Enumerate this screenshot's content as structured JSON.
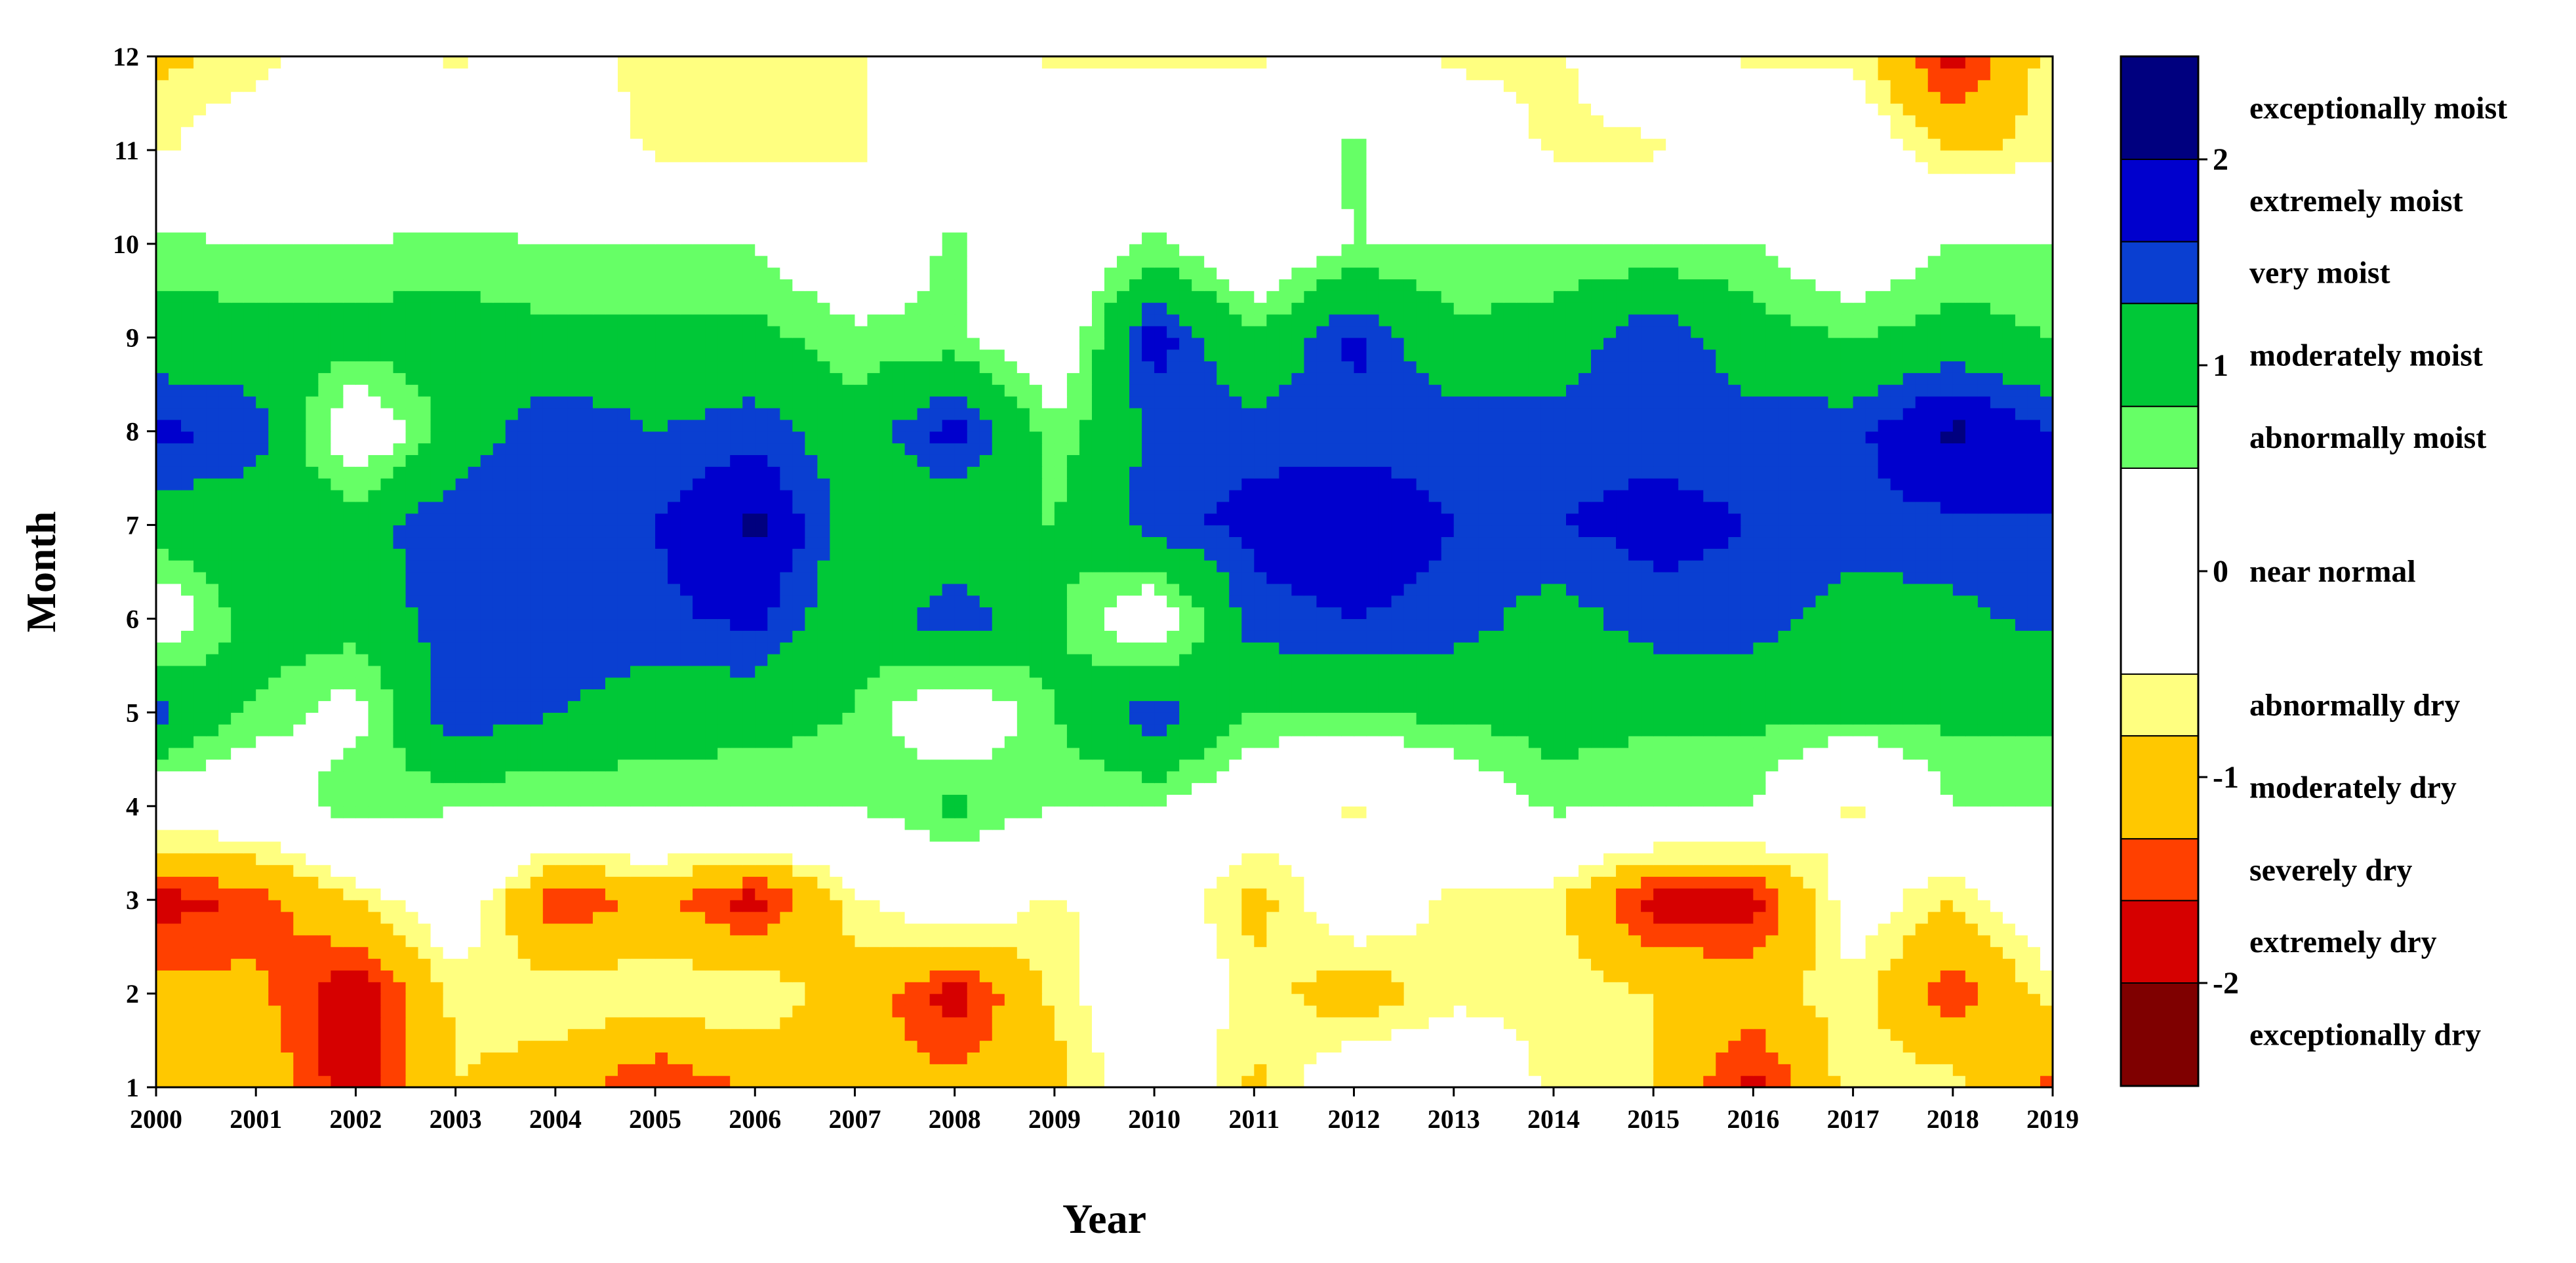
{
  "chart_data": {
    "type": "heatmap",
    "subtype": "filled-contour",
    "xlabel": "Year",
    "ylabel": "Month",
    "x": [
      2000,
      2001,
      2002,
      2003,
      2004,
      2005,
      2006,
      2007,
      2008,
      2009,
      2010,
      2011,
      2012,
      2013,
      2014,
      2015,
      2016,
      2017,
      2018,
      2019
    ],
    "y": [
      1,
      2,
      3,
      4,
      5,
      6,
      7,
      8,
      9,
      10,
      11,
      12
    ],
    "xlim": [
      2000,
      2019
    ],
    "ylim": [
      1,
      12
    ],
    "x_tick_labels": [
      "2000",
      "2001",
      "2002",
      "2003",
      "2004",
      "2005",
      "2006",
      "2007",
      "2008",
      "2009",
      "2010",
      "2011",
      "2012",
      "2013",
      "2014",
      "2015",
      "2016",
      "2017",
      "2018",
      "2019"
    ],
    "y_tick_labels": [
      "1",
      "2",
      "3",
      "4",
      "5",
      "6",
      "7",
      "8",
      "9",
      "10",
      "11",
      "12"
    ],
    "z_estimated": [
      [
        -0.9,
        -0.9,
        -1.9,
        -0.8,
        -1.0,
        -1.7,
        -1.2,
        -1.1,
        -1.2,
        -1.0,
        0.0,
        -0.9,
        0.0,
        0.0,
        -0.6,
        -0.8,
        -1.8,
        -0.6,
        -0.6,
        -1.5
      ],
      [
        -1.1,
        -1.2,
        -1.9,
        -0.7,
        -0.6,
        -0.5,
        -0.5,
        -1.0,
        -1.8,
        -0.7,
        0.0,
        -0.6,
        -1.1,
        -0.6,
        -0.6,
        -0.8,
        -1.0,
        -0.6,
        -1.6,
        -0.6
      ],
      [
        -1.8,
        -1.5,
        -0.8,
        0.0,
        -1.6,
        -1.2,
        -1.8,
        -0.6,
        0.0,
        -0.6,
        0.0,
        -1.0,
        0.0,
        -0.6,
        -0.7,
        -1.8,
        -1.8,
        -0.2,
        -0.8,
        0.0
      ],
      [
        0.0,
        0.0,
        0.8,
        0.5,
        0.5,
        0.5,
        0.5,
        0.5,
        0.9,
        0.5,
        0.5,
        0.0,
        -0.6,
        0.0,
        0.6,
        0.5,
        0.5,
        -0.6,
        0.5,
        0.5
      ],
      [
        1.5,
        0.7,
        0.3,
        1.6,
        1.3,
        1.1,
        1.0,
        0.8,
        0.0,
        0.8,
        1.6,
        0.8,
        0.8,
        0.9,
        1.0,
        0.9,
        0.9,
        0.9,
        0.9,
        0.9
      ],
      [
        0.0,
        1.1,
        1.0,
        1.5,
        1.5,
        1.5,
        1.7,
        0.9,
        1.6,
        0.9,
        0.0,
        1.5,
        1.6,
        1.5,
        1.1,
        1.5,
        1.5,
        1.1,
        1.2,
        1.4
      ],
      [
        1.1,
        1.0,
        1.1,
        1.6,
        1.6,
        1.6,
        2.1,
        1.1,
        0.8,
        0.8,
        1.5,
        1.7,
        1.8,
        1.6,
        1.6,
        1.7,
        1.6,
        1.5,
        1.5,
        1.6
      ],
      [
        1.7,
        1.5,
        0.0,
        1.0,
        1.6,
        1.3,
        1.5,
        1.0,
        1.8,
        0.6,
        1.4,
        1.5,
        1.5,
        1.5,
        1.5,
        1.5,
        1.5,
        1.5,
        2.1,
        1.6
      ],
      [
        1.0,
        1.0,
        1.0,
        1.0,
        0.9,
        0.9,
        0.9,
        0.6,
        0.6,
        0.0,
        1.8,
        0.8,
        1.7,
        0.9,
        1.0,
        1.6,
        1.0,
        0.8,
        1.0,
        0.8
      ],
      [
        0.6,
        0.5,
        0.5,
        0.6,
        0.5,
        0.5,
        0.5,
        0.0,
        0.6,
        0.0,
        0.6,
        0.0,
        0.5,
        0.5,
        0.5,
        0.5,
        0.5,
        0.0,
        0.5,
        0.5
      ],
      [
        -0.6,
        0.0,
        0.0,
        0.0,
        0.0,
        -0.6,
        -0.6,
        -0.6,
        0.0,
        0.0,
        0.0,
        0.0,
        0.6,
        0.0,
        -0.6,
        -0.6,
        0.0,
        0.0,
        -0.9,
        -0.6
      ],
      [
        -0.9,
        -0.7,
        0.0,
        -0.6,
        0.0,
        -0.8,
        -0.8,
        -0.6,
        0.0,
        -0.6,
        -0.6,
        -0.6,
        0.0,
        -0.6,
        -0.6,
        0.0,
        -0.6,
        -0.6,
        -1.8,
        -0.6
      ]
    ],
    "colorbar": {
      "min": -2.5,
      "max": 2.5,
      "tick_values": [
        2,
        1,
        0,
        -1,
        -2
      ],
      "tick_labels": [
        "2",
        "1",
        "0",
        "-1",
        "-2"
      ],
      "classes": [
        {
          "label": "exceptionally moist",
          "from": 2.0,
          "to": 2.5,
          "color": "#00007f"
        },
        {
          "label": "extremely moist",
          "from": 1.6,
          "to": 2.0,
          "color": "#0000cd"
        },
        {
          "label": "very moist",
          "from": 1.3,
          "to": 1.6,
          "color": "#0a3fd1"
        },
        {
          "label": "moderately moist",
          "from": 0.8,
          "to": 1.3,
          "color": "#00c837"
        },
        {
          "label": "abnormally moist",
          "from": 0.5,
          "to": 0.8,
          "color": "#66ff66"
        },
        {
          "label": "near normal",
          "from": -0.5,
          "to": 0.5,
          "color": "#ffffff"
        },
        {
          "label": "abnormally dry",
          "from": -0.8,
          "to": -0.5,
          "color": "#ffff80"
        },
        {
          "label": "moderately dry",
          "from": -1.3,
          "to": -0.8,
          "color": "#ffc800"
        },
        {
          "label": "severely dry",
          "from": -1.6,
          "to": -1.3,
          "color": "#ff4000"
        },
        {
          "label": "extremely dry",
          "from": -2.0,
          "to": -1.6,
          "color": "#d60000"
        },
        {
          "label": "exceptionally dry",
          "from": -2.5,
          "to": -2.0,
          "color": "#7f0000"
        }
      ]
    }
  }
}
